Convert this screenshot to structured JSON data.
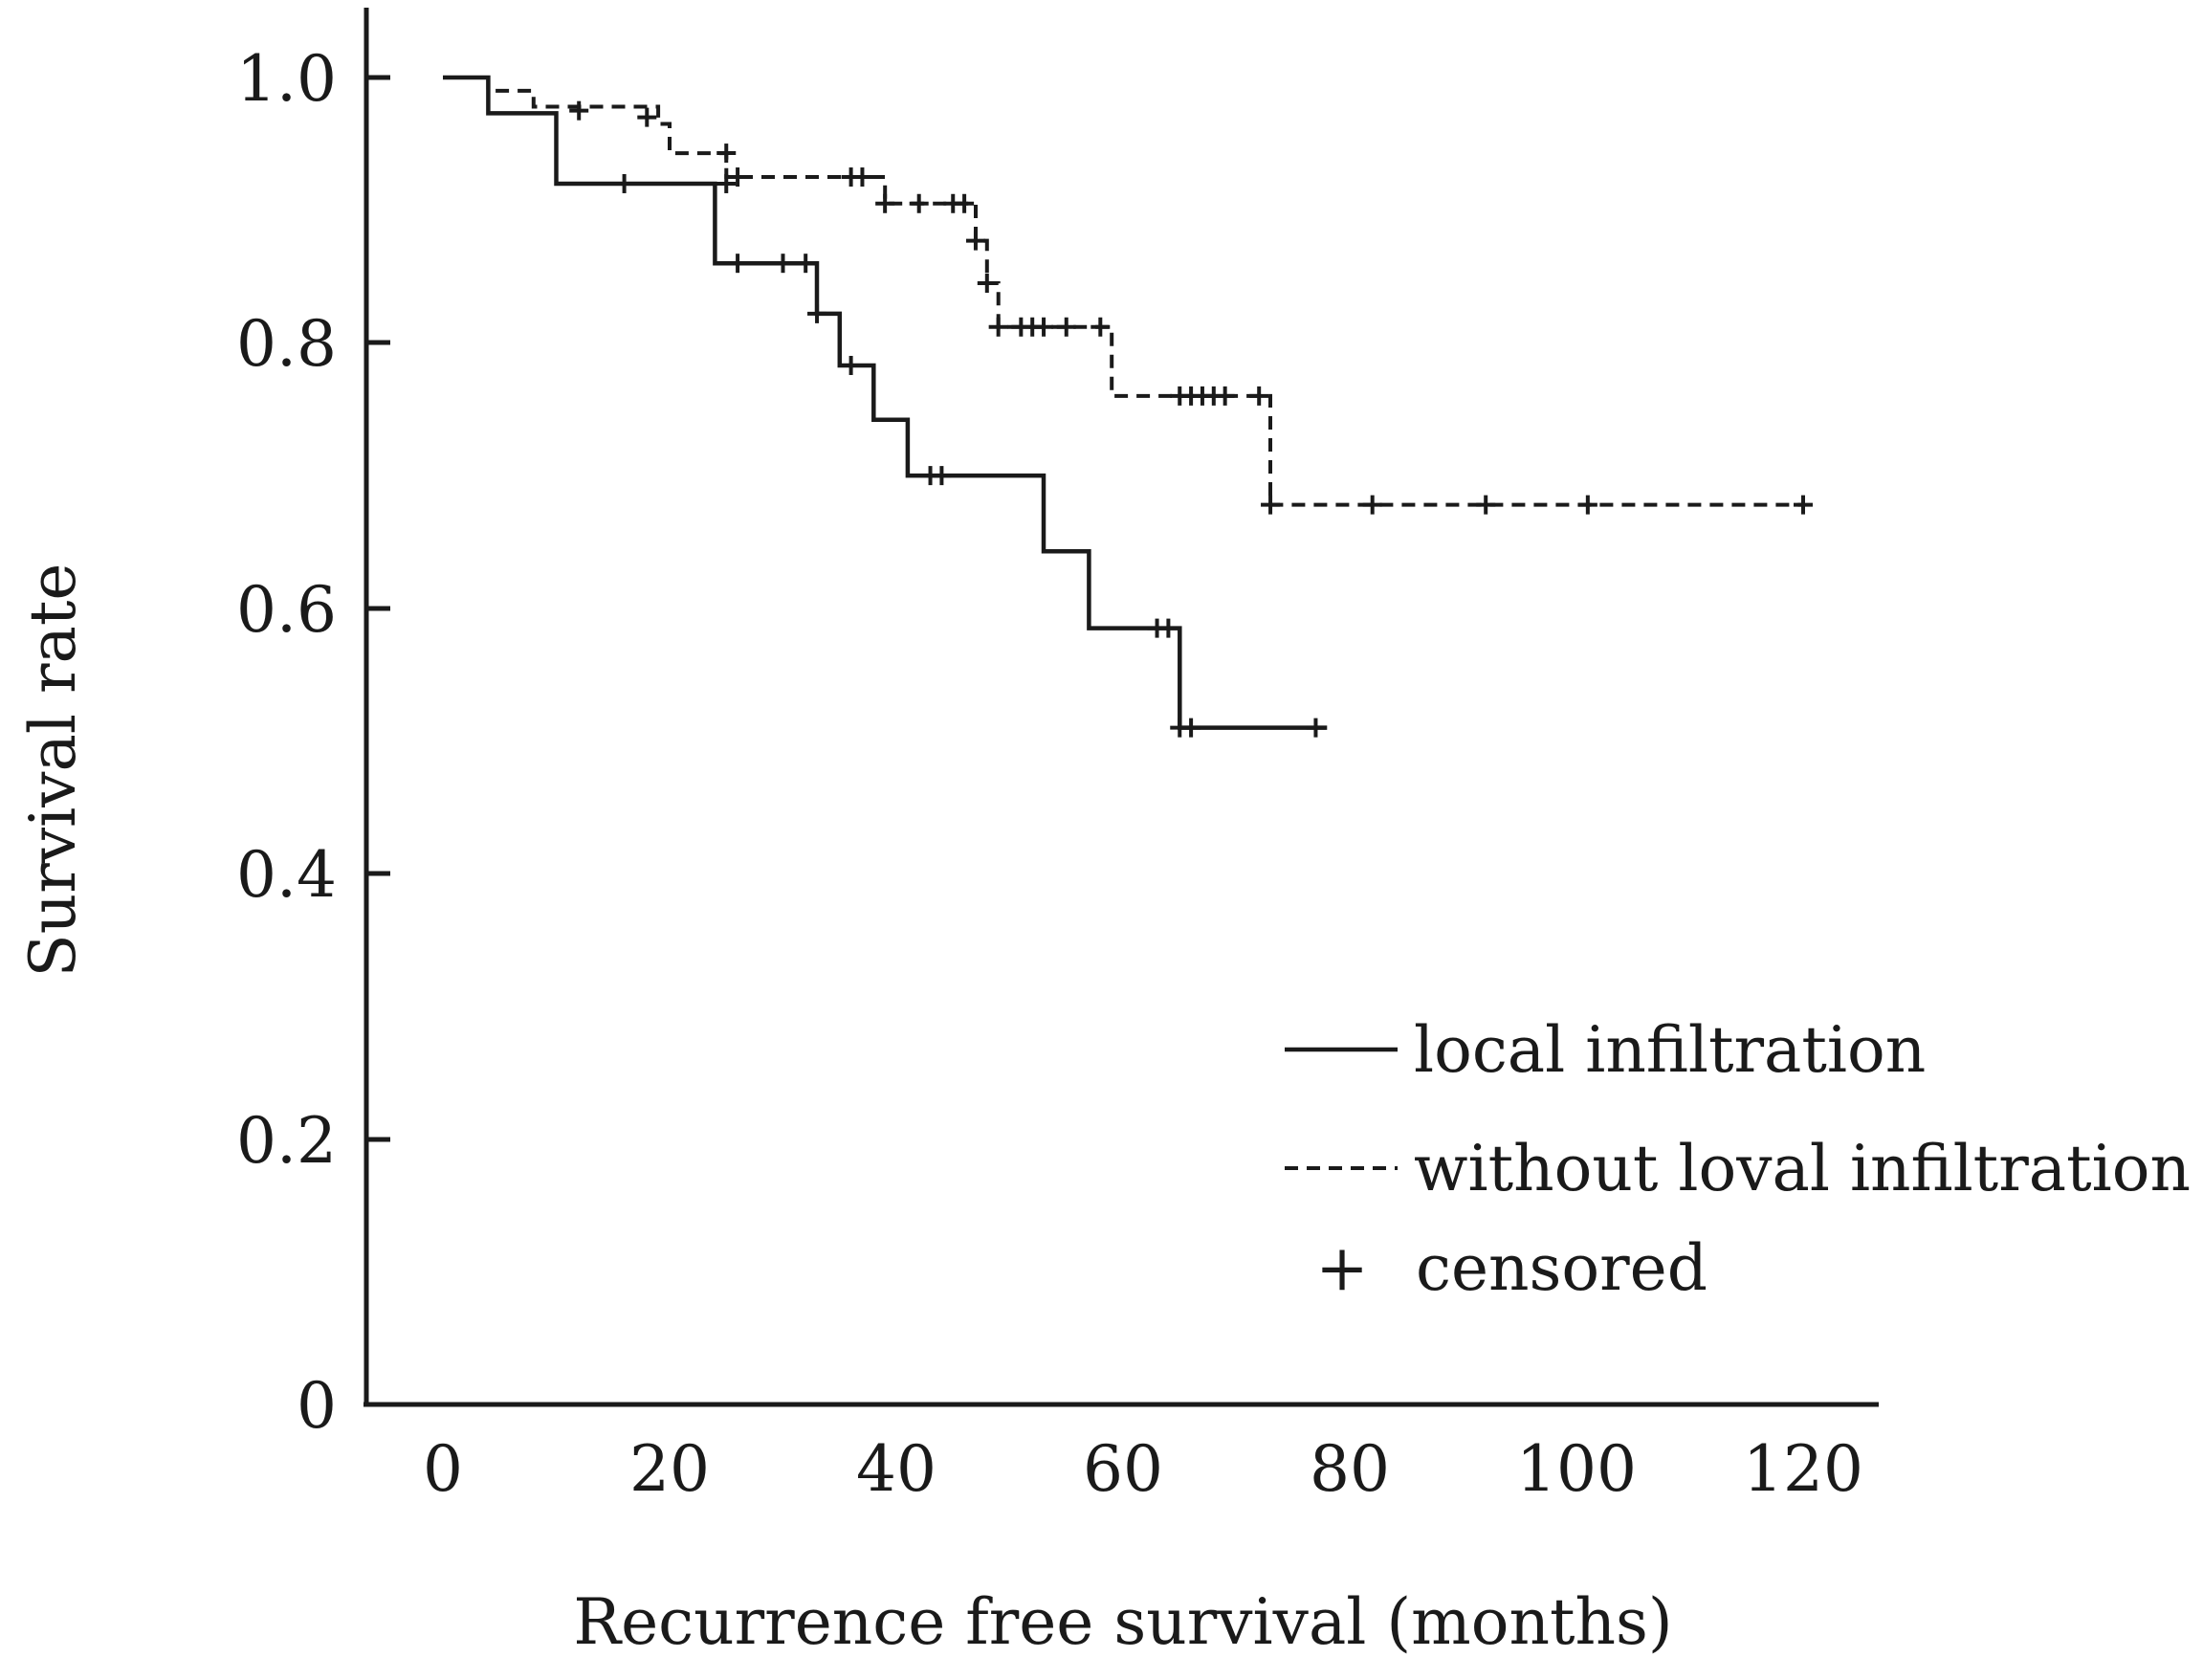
{
  "chart_data": {
    "type": "line",
    "subtype": "kaplan-meier",
    "title": "",
    "xlabel": "Recurrence free survival (months)",
    "ylabel": "Survival rate",
    "xlim": [
      0,
      120
    ],
    "ylim": [
      0,
      1.0
    ],
    "x_ticks": [
      0,
      20,
      40,
      60,
      80,
      100,
      120
    ],
    "x_tick_labels": [
      "0",
      "20",
      "40",
      "60",
      "80",
      "100",
      "120"
    ],
    "y_ticks": [
      0,
      0.2,
      0.4,
      0.6,
      0.8,
      1.0
    ],
    "y_tick_labels": [
      "0",
      "0.2",
      "0.4",
      "0.6",
      "0.8",
      "1.0"
    ],
    "grid": false,
    "legend_position": "bottom-right",
    "legend": [
      {
        "label": "local infiltration",
        "style": "solid"
      },
      {
        "label": "without loval infiltration",
        "style": "dashed"
      },
      {
        "label": "censored",
        "style": "marker",
        "symbol": "+"
      }
    ],
    "censor_symbol": "+",
    "series": [
      {
        "name": "local infiltration",
        "style": "solid",
        "steps": [
          [
            0,
            1.0
          ],
          [
            4,
            0.973
          ],
          [
            10,
            0.92
          ],
          [
            24,
            0.86
          ],
          [
            33,
            0.822
          ],
          [
            35,
            0.783
          ],
          [
            38,
            0.742
          ],
          [
            41,
            0.7
          ],
          [
            53,
            0.643
          ],
          [
            57,
            0.585
          ],
          [
            65,
            0.51
          ],
          [
            78,
            0.51
          ]
        ],
        "censored": [
          [
            16,
            0.92
          ],
          [
            25,
            0.92
          ],
          [
            26,
            0.86
          ],
          [
            30,
            0.86
          ],
          [
            32,
            0.86
          ],
          [
            33,
            0.822
          ],
          [
            36,
            0.783
          ],
          [
            43,
            0.7
          ],
          [
            44,
            0.7
          ],
          [
            63,
            0.585
          ],
          [
            64,
            0.585
          ],
          [
            65,
            0.51
          ],
          [
            66,
            0.51
          ],
          [
            77,
            0.51
          ]
        ]
      },
      {
        "name": "without loval infiltration",
        "style": "dashed",
        "steps": [
          [
            0,
            1.0
          ],
          [
            4,
            0.99
          ],
          [
            8,
            0.978
          ],
          [
            19,
            0.965
          ],
          [
            20,
            0.943
          ],
          [
            25,
            0.925
          ],
          [
            39,
            0.905
          ],
          [
            47,
            0.877
          ],
          [
            48,
            0.845
          ],
          [
            49,
            0.812
          ],
          [
            59,
            0.76
          ],
          [
            73,
            0.678
          ],
          [
            120,
            0.678
          ]
        ],
        "censored": [
          [
            12,
            0.975
          ],
          [
            18,
            0.97
          ],
          [
            25,
            0.943
          ],
          [
            26,
            0.925
          ],
          [
            36,
            0.925
          ],
          [
            37,
            0.925
          ],
          [
            39,
            0.905
          ],
          [
            42,
            0.905
          ],
          [
            45,
            0.905
          ],
          [
            46,
            0.905
          ],
          [
            47,
            0.877
          ],
          [
            48,
            0.845
          ],
          [
            49,
            0.812
          ],
          [
            51,
            0.812
          ],
          [
            52,
            0.812
          ],
          [
            53,
            0.812
          ],
          [
            55,
            0.812
          ],
          [
            58,
            0.812
          ],
          [
            65,
            0.76
          ],
          [
            66,
            0.76
          ],
          [
            67,
            0.76
          ],
          [
            68,
            0.76
          ],
          [
            69,
            0.76
          ],
          [
            72,
            0.76
          ],
          [
            73,
            0.678
          ],
          [
            82,
            0.678
          ],
          [
            92,
            0.678
          ],
          [
            101,
            0.678
          ],
          [
            120,
            0.678
          ]
        ]
      }
    ]
  }
}
